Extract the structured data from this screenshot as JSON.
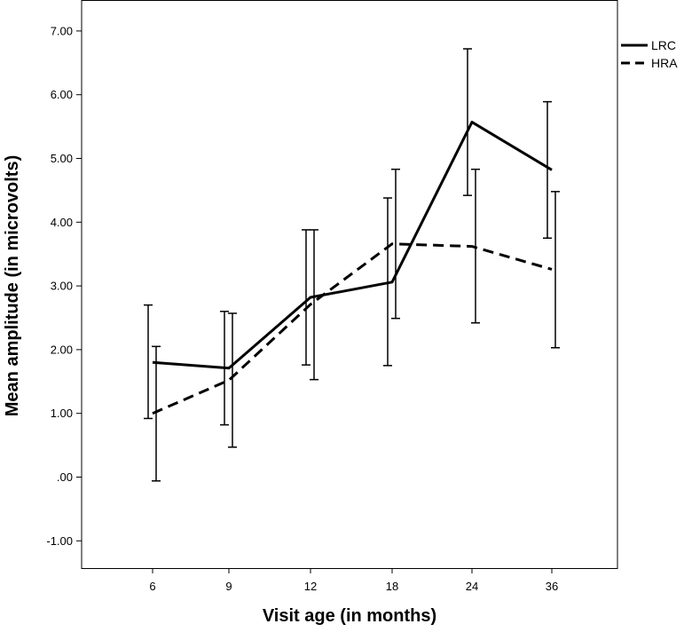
{
  "chart_data": {
    "type": "line",
    "xlabel": "Visit age (in months)",
    "ylabel": "Mean amplitude (in microvolts)",
    "categories": [
      "6",
      "9",
      "12",
      "18",
      "24",
      "36"
    ],
    "ylim": [
      -1.6,
      7.5
    ],
    "yticks": [
      -1.0,
      0.0,
      1.0,
      2.0,
      3.0,
      4.0,
      5.0,
      6.0,
      7.0
    ],
    "ytick_labels": [
      "-1.00",
      ".00",
      "1.00",
      "2.00",
      "3.00",
      "4.00",
      "5.00",
      "6.00",
      "7.00"
    ],
    "grid": false,
    "legend_position": "top-right, outside plot",
    "error_bars": true,
    "series": [
      {
        "name": "LRC",
        "line_style": "solid",
        "color": "#000000",
        "values": [
          1.8,
          1.71,
          2.82,
          3.06,
          5.57,
          4.82
        ],
        "error_low": [
          0.92,
          0.82,
          1.76,
          1.75,
          4.42,
          3.75
        ],
        "error_high": [
          2.7,
          2.6,
          3.88,
          4.38,
          6.72,
          5.89
        ]
      },
      {
        "name": "HRA",
        "line_style": "dashed",
        "color": "#000000",
        "values": [
          1.0,
          1.52,
          2.71,
          3.66,
          3.62,
          3.26
        ],
        "error_low": [
          -0.06,
          0.47,
          1.53,
          2.49,
          2.42,
          2.03
        ],
        "error_high": [
          2.05,
          2.57,
          3.88,
          4.83,
          4.83,
          4.48
        ]
      }
    ]
  }
}
